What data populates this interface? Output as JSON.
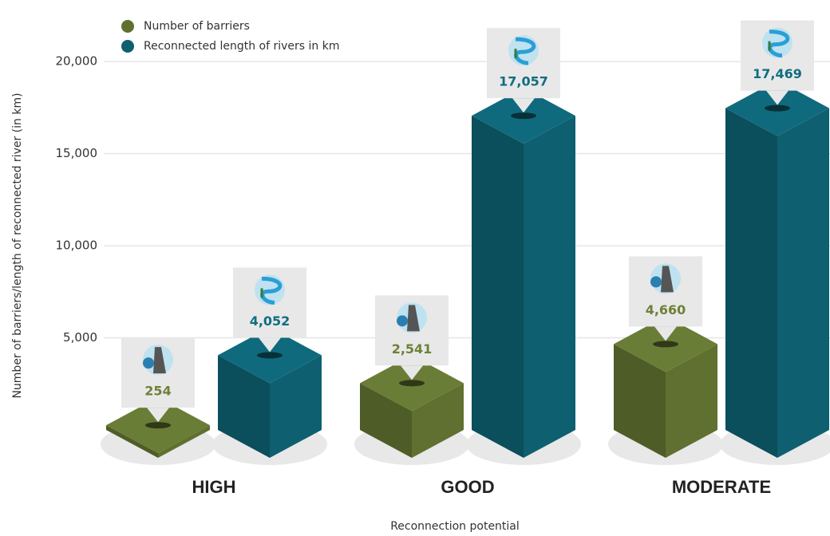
{
  "chart_data": {
    "type": "bar3d",
    "y_axis_label": "Number of barriers/length of reconnected river (in km)",
    "x_axis_label": "Reconnection potential",
    "categories": [
      "HIGH",
      "GOOD",
      "MODERATE"
    ],
    "series": [
      {
        "name": "Number of barriers",
        "color": "#5f7030",
        "values": [
          254,
          2541,
          4660
        ],
        "value_labels": [
          "254",
          "2,541",
          "4,660"
        ]
      },
      {
        "name": "Reconnected length of rivers in km",
        "color": "#0e5f70",
        "values": [
          4052,
          17057,
          17469
        ],
        "value_labels": [
          "4,052",
          "17,057",
          "17,469"
        ]
      }
    ],
    "ylim": [
      0,
      22000
    ],
    "yticks": [
      {
        "value": 5000,
        "label": "5,000"
      },
      {
        "value": 10000,
        "label": "10,000"
      },
      {
        "value": 15000,
        "label": "15,000"
      },
      {
        "value": 20000,
        "label": "20,000"
      }
    ],
    "grid": true,
    "legend": "top-left"
  }
}
